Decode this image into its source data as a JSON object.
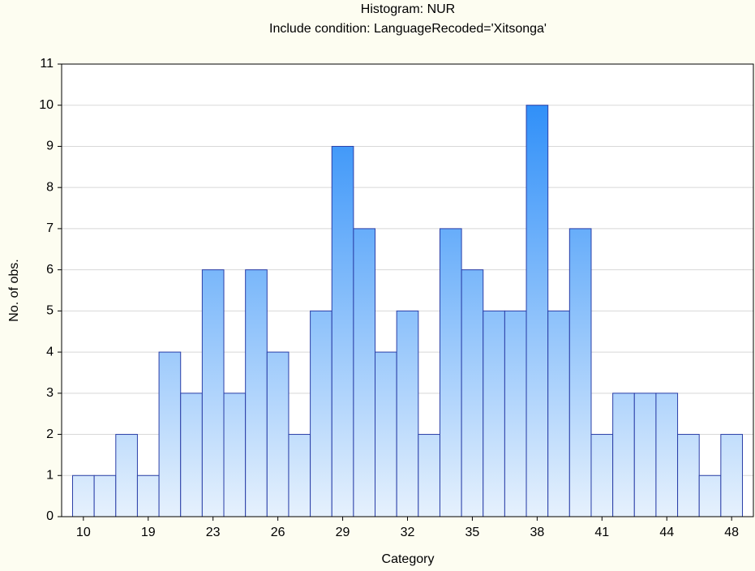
{
  "chart_data": {
    "type": "bar",
    "title": "Histogram: NUR",
    "subtitle": "Include condition: LanguageRecoded='Xitsonga'",
    "x_label": "Category",
    "y_label": "No. of obs.",
    "categories": [
      "10",
      null,
      null,
      "19",
      null,
      null,
      "23",
      null,
      null,
      "26",
      null,
      null,
      "29",
      null,
      null,
      "32",
      null,
      null,
      "35",
      null,
      null,
      "38",
      null,
      null,
      "41",
      null,
      null,
      "44",
      null,
      null,
      "48"
    ],
    "values": [
      1,
      1,
      2,
      1,
      4,
      3,
      6,
      3,
      6,
      4,
      2,
      5,
      9,
      7,
      4,
      5,
      2,
      7,
      6,
      5,
      5,
      10,
      5,
      7,
      2,
      3,
      3,
      3,
      2,
      1,
      2
    ],
    "color": "#1e86f8",
    "ylim": [
      0,
      11
    ],
    "yticks": [
      0,
      1,
      2,
      3,
      4,
      5,
      6,
      7,
      8,
      9,
      10,
      11
    ],
    "grid": true
  }
}
